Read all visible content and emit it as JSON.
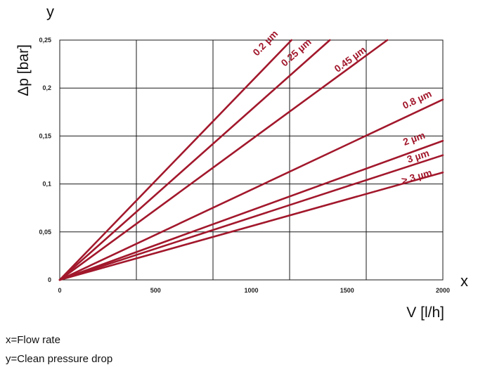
{
  "chart_data": {
    "type": "line",
    "xlabel": "V [l/h]",
    "ylabel": "Δp [bar]",
    "x_axis_letter": "x",
    "y_axis_letter": "y",
    "xlim": [
      0,
      2000
    ],
    "ylim": [
      0,
      0.25
    ],
    "x_ticks": [
      0,
      500,
      1000,
      1500,
      2000
    ],
    "x_tick_labels": [
      "0",
      "500",
      "1000",
      "1500",
      "2000"
    ],
    "y_ticks": [
      0,
      0.05,
      0.1,
      0.15,
      0.2,
      0.25
    ],
    "y_tick_labels": [
      "0",
      "0,05",
      "0,1",
      "0,15",
      "0,2",
      "0,25"
    ],
    "grid_x": [
      400,
      800,
      1200,
      1600,
      2000
    ],
    "grid_y": [
      0.05,
      0.1,
      0.15,
      0.2,
      0.25
    ],
    "grid": true,
    "line_color": "#a2182c",
    "series": [
      {
        "name": "0.2 µm",
        "x": [
          0,
          1210
        ],
        "y": [
          0,
          0.25
        ]
      },
      {
        "name": "0.25 µm",
        "x": [
          0,
          1410
        ],
        "y": [
          0,
          0.25
        ]
      },
      {
        "name": "0.45 µm",
        "x": [
          0,
          1710
        ],
        "y": [
          0,
          0.25
        ]
      },
      {
        "name": "0.8 µm",
        "x": [
          0,
          2000
        ],
        "y": [
          0,
          0.188
        ]
      },
      {
        "name": "2 µm",
        "x": [
          0,
          2000
        ],
        "y": [
          0,
          0.145
        ]
      },
      {
        "name": "3 µm",
        "x": [
          0,
          2000
        ],
        "y": [
          0,
          0.13
        ]
      },
      {
        "name": "> 3 µm",
        "x": [
          0,
          2000
        ],
        "y": [
          0,
          0.112
        ]
      }
    ]
  },
  "captions": {
    "x_caption": "x=Flow rate",
    "y_caption": "y=Clean pressure drop"
  }
}
